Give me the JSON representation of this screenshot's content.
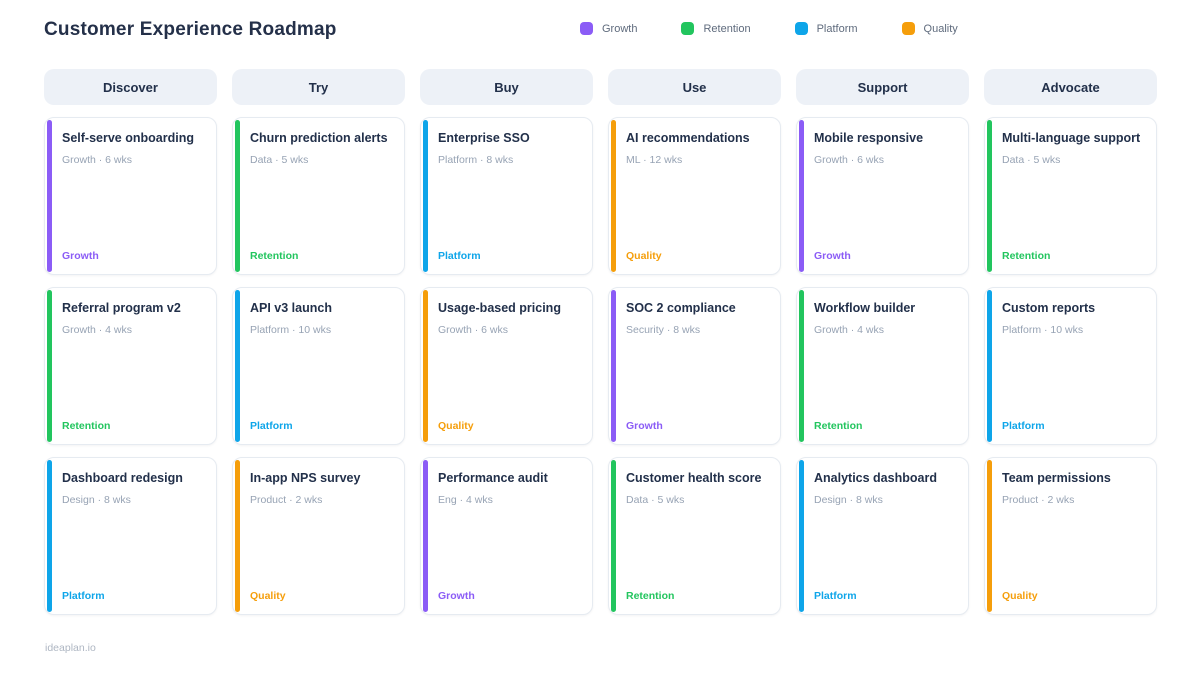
{
  "page": {
    "title": "Customer Experience Roadmap",
    "footer": "ideaplan.io"
  },
  "legend": [
    {
      "label": "Growth",
      "color": "#8b5cf6"
    },
    {
      "label": "Retention",
      "color": "#22c55e"
    },
    {
      "label": "Platform",
      "color": "#0ea5e9"
    },
    {
      "label": "Quality",
      "color": "#f59e0b"
    }
  ],
  "tag_colors": {
    "Growth": "#8b5cf6",
    "Retention": "#22c55e",
    "Platform": "#0ea5e9",
    "Quality": "#f59e0b"
  },
  "columns": [
    {
      "name": "Discover",
      "cards": [
        {
          "title": "Self-serve onboarding",
          "meta": "Growth · 6 wks",
          "tag": "Growth"
        },
        {
          "title": "Referral program v2",
          "meta": "Growth · 4 wks",
          "tag": "Retention"
        },
        {
          "title": "Dashboard redesign",
          "meta": "Design · 8 wks",
          "tag": "Platform"
        }
      ]
    },
    {
      "name": "Try",
      "cards": [
        {
          "title": "Churn prediction alerts",
          "meta": "Data · 5 wks",
          "tag": "Retention"
        },
        {
          "title": "API v3 launch",
          "meta": "Platform · 10 wks",
          "tag": "Platform"
        },
        {
          "title": "In-app NPS survey",
          "meta": "Product · 2 wks",
          "tag": "Quality"
        }
      ]
    },
    {
      "name": "Buy",
      "cards": [
        {
          "title": "Enterprise SSO",
          "meta": "Platform · 8 wks",
          "tag": "Platform"
        },
        {
          "title": "Usage-based pricing",
          "meta": "Growth · 6 wks",
          "tag": "Quality"
        },
        {
          "title": "Performance audit",
          "meta": "Eng · 4 wks",
          "tag": "Growth"
        }
      ]
    },
    {
      "name": "Use",
      "cards": [
        {
          "title": "AI recommendations",
          "meta": "ML · 12 wks",
          "tag": "Quality"
        },
        {
          "title": "SOC 2 compliance",
          "meta": "Security · 8 wks",
          "tag": "Growth"
        },
        {
          "title": "Customer health score",
          "meta": "Data · 5 wks",
          "tag": "Retention"
        }
      ]
    },
    {
      "name": "Support",
      "cards": [
        {
          "title": "Mobile responsive",
          "meta": "Growth · 6 wks",
          "tag": "Growth"
        },
        {
          "title": "Workflow builder",
          "meta": "Growth · 4 wks",
          "tag": "Retention"
        },
        {
          "title": "Analytics dashboard",
          "meta": "Design · 8 wks",
          "tag": "Platform"
        }
      ]
    },
    {
      "name": "Advocate",
      "cards": [
        {
          "title": "Multi-language support",
          "meta": "Data · 5 wks",
          "tag": "Retention"
        },
        {
          "title": "Custom reports",
          "meta": "Platform · 10 wks",
          "tag": "Platform"
        },
        {
          "title": "Team permissions",
          "meta": "Product · 2 wks",
          "tag": "Quality"
        }
      ]
    }
  ]
}
